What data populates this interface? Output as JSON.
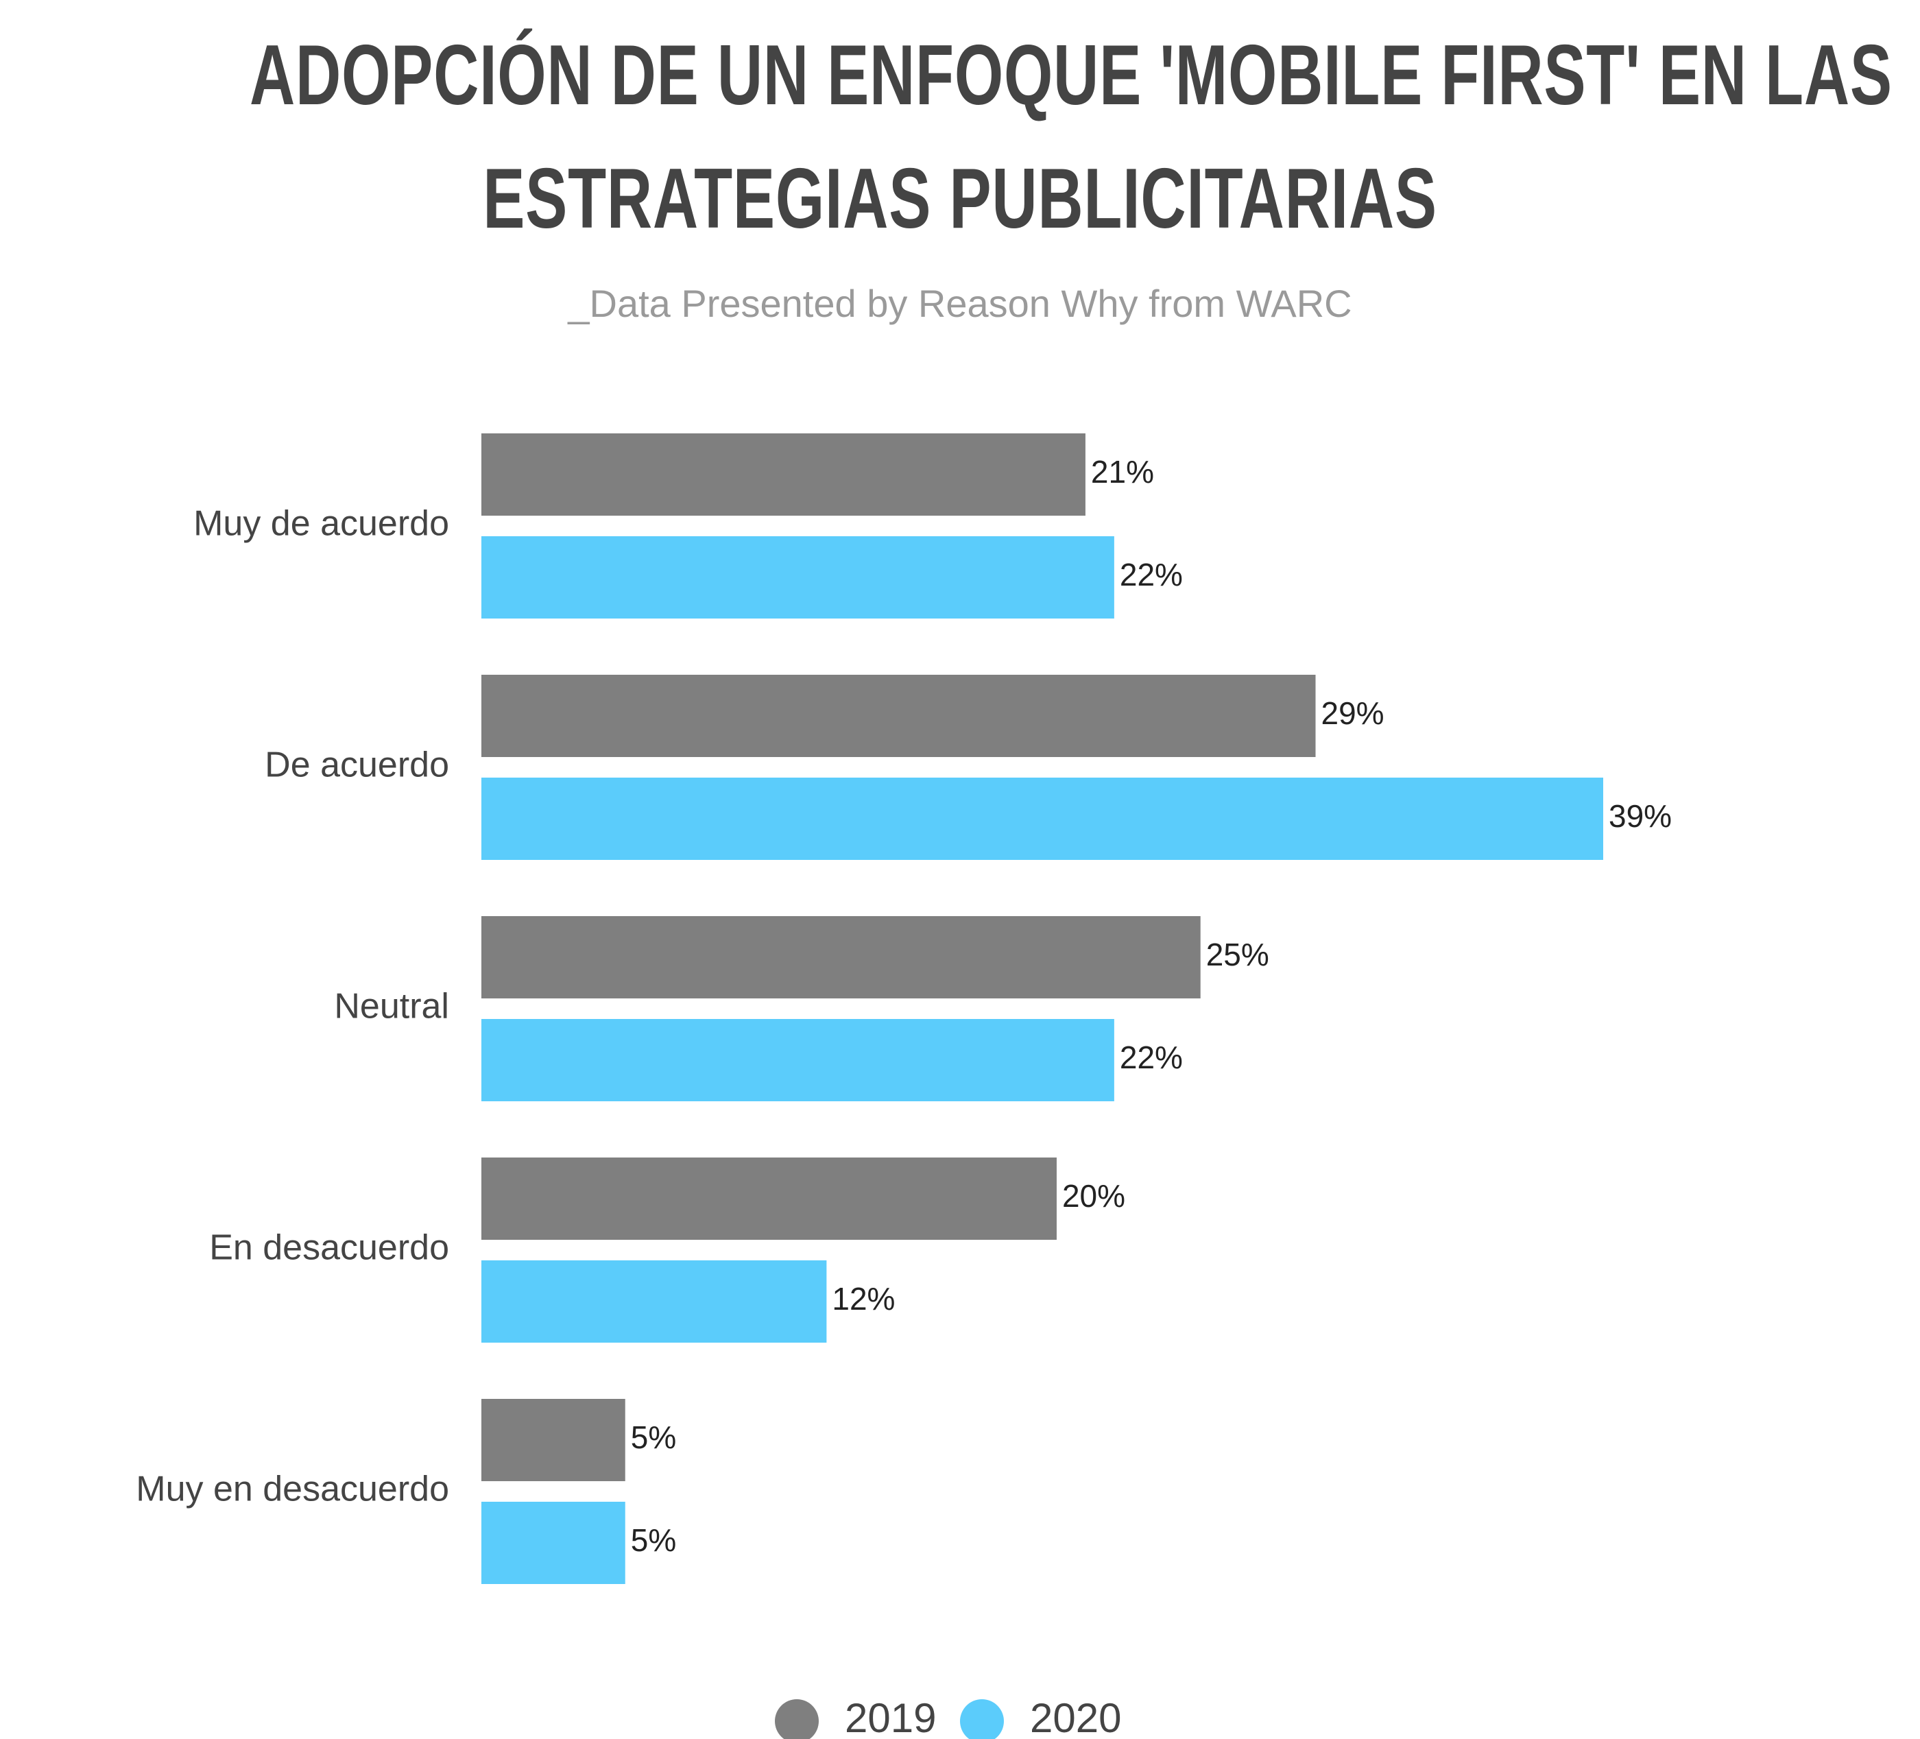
{
  "title_lines": [
    "ADOPCIÓN DE UN ENFOQUE 'MOBILE FIRST' EN LAS",
    "ESTRATEGIAS PUBLICITARIAS"
  ],
  "subtitle": "_Data Presented by Reason Why from WARC",
  "colors": {
    "series_2019": "#7f7f7f",
    "series_2020": "#5bccfb",
    "title": "#444444",
    "subtitle": "#9a9a9a"
  },
  "chart_data": {
    "type": "bar",
    "orientation": "horizontal",
    "title": "ADOPCIÓN DE UN ENFOQUE 'MOBILE FIRST' EN LAS ESTRATEGIAS PUBLICITARIAS",
    "subtitle": "_Data Presented by Reason Why from WARC",
    "categories": [
      "Muy de acuerdo",
      "De acuerdo",
      "Neutral",
      "En desacuerdo",
      "Muy en desacuerdo"
    ],
    "series": [
      {
        "name": "2019",
        "values": [
          21,
          29,
          25,
          20,
          5
        ],
        "labels": [
          "21%",
          "29%",
          "25%",
          "20%",
          "5%"
        ]
      },
      {
        "name": "2020",
        "values": [
          22,
          39,
          22,
          12,
          5
        ],
        "labels": [
          "22%",
          "39%",
          "22%",
          "12%",
          "5%"
        ]
      }
    ],
    "xlim": [
      0,
      39
    ],
    "unit": "%",
    "grid": false,
    "legend_position": "bottom-center"
  }
}
